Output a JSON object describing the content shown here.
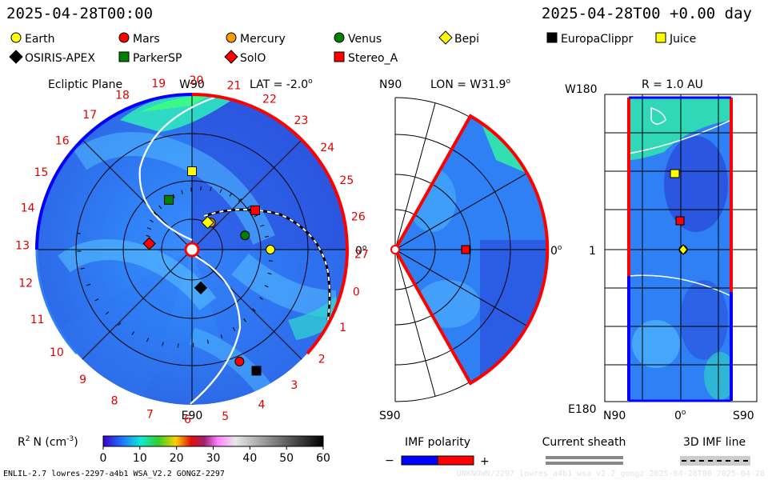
{
  "header": {
    "time_left": "2025-04-28T00:00",
    "time_right": "2025-04-28T00 +0.00 day"
  },
  "legend": [
    {
      "label": "Earth",
      "shape": "circle",
      "color": "#ffff00"
    },
    {
      "label": "Mars",
      "shape": "circle",
      "color": "#ff0000"
    },
    {
      "label": "Mercury",
      "shape": "circle",
      "color": "#ff9900"
    },
    {
      "label": "Venus",
      "shape": "circle",
      "color": "#008000"
    },
    {
      "label": "Bepi",
      "shape": "diamond",
      "color": "#ffff00"
    },
    {
      "label": "EuropaClippr",
      "shape": "square",
      "color": "#000000"
    },
    {
      "label": "Juice",
      "shape": "square",
      "color": "#ffff00"
    },
    {
      "label": "OSIRIS-APEX",
      "shape": "diamond",
      "color": "#000000"
    },
    {
      "label": "ParkerSP",
      "shape": "square",
      "color": "#008000"
    },
    {
      "label": "SolO",
      "shape": "diamond",
      "color": "#ff0000"
    },
    {
      "label": "Stereo_A",
      "shape": "square",
      "color": "#ff0000"
    }
  ],
  "panels": {
    "ecliptic": {
      "title": "Ecliptic Plane",
      "lat": "LAT = -2.0",
      "deg": "o",
      "top": "W90",
      "bottom": "E90",
      "right": "0",
      "rotations": [
        "20",
        "21",
        "22",
        "23",
        "24",
        "25",
        "26",
        "27",
        "0",
        "1",
        "2",
        "3",
        "4",
        "5",
        "6",
        "7",
        "8",
        "9",
        "10",
        "11",
        "12",
        "13",
        "14",
        "15",
        "16",
        "17",
        "18",
        "19"
      ]
    },
    "meridional": {
      "lon": "LON = W31.9",
      "deg": "o",
      "top": "N90",
      "bottom": "S90",
      "right": "0"
    },
    "shell": {
      "r": "R = 1.0 AU",
      "top_left": "W180",
      "mid_left": "1",
      "bottom_left": "E180",
      "bottom_mid": "0",
      "bottom_n": "N90",
      "bottom_s": "S90",
      "deg": "o"
    }
  },
  "colorbar": {
    "label": "R",
    "sup": "2",
    "label_rest": "N (cm",
    "sup2": "-3",
    "label_end": ")",
    "ticks": [
      "0",
      "10",
      "20",
      "30",
      "40",
      "50",
      "60"
    ]
  },
  "imf": {
    "title": "IMF polarity",
    "minus": "−",
    "plus": "+",
    "sheath": "Current sheath",
    "line3d": "3D IMF line"
  },
  "footer": {
    "left": "ENLIL-2.7 lowres-2297-a4b1 WSA_V2.2 GONGZ-2297",
    "right": "UNKNOWN/2297_lowres_a4b1_wsa_v2.2_gongz_2025-04-28T00  2025-04-28"
  },
  "colors": {
    "background": "#ffffff",
    "polarity_negative": "#0000ff",
    "polarity_positive": "#ff0000",
    "label_red": "#e00000",
    "solar_wind_base": "#2f7ff5"
  },
  "chart_data": {
    "type": "heatmap",
    "colorbar_range": [
      0,
      60
    ],
    "colorbar_ticks": [
      0,
      10,
      20,
      30,
      40,
      50,
      60
    ],
    "ecliptic_bodies": [
      {
        "name": "Earth",
        "r_au": 1.0,
        "lon_deg": 0
      },
      {
        "name": "Stereo_A",
        "r_au": 0.95,
        "lon_deg": 31.9
      },
      {
        "name": "Venus",
        "r_au": 0.7,
        "lon_deg": 15
      },
      {
        "name": "Mercury",
        "r_au": 0.42,
        "lon_deg": 55
      },
      {
        "name": "Bepi",
        "r_au": 0.4,
        "lon_deg": 60
      },
      {
        "name": "Juice",
        "r_au": 1.0,
        "lon_deg": 90
      },
      {
        "name": "ParkerSP",
        "r_au": 0.7,
        "lon_deg": 115
      },
      {
        "name": "SolO",
        "r_au": 0.55,
        "lon_deg": 172
      },
      {
        "name": "OSIRIS-APEX",
        "r_au": 0.5,
        "lon_deg": 283
      },
      {
        "name": "Mars",
        "r_au": 1.55,
        "lon_deg": 293
      },
      {
        "name": "EuropaClippr",
        "r_au": 1.75,
        "lon_deg": 298
      }
    ]
  }
}
